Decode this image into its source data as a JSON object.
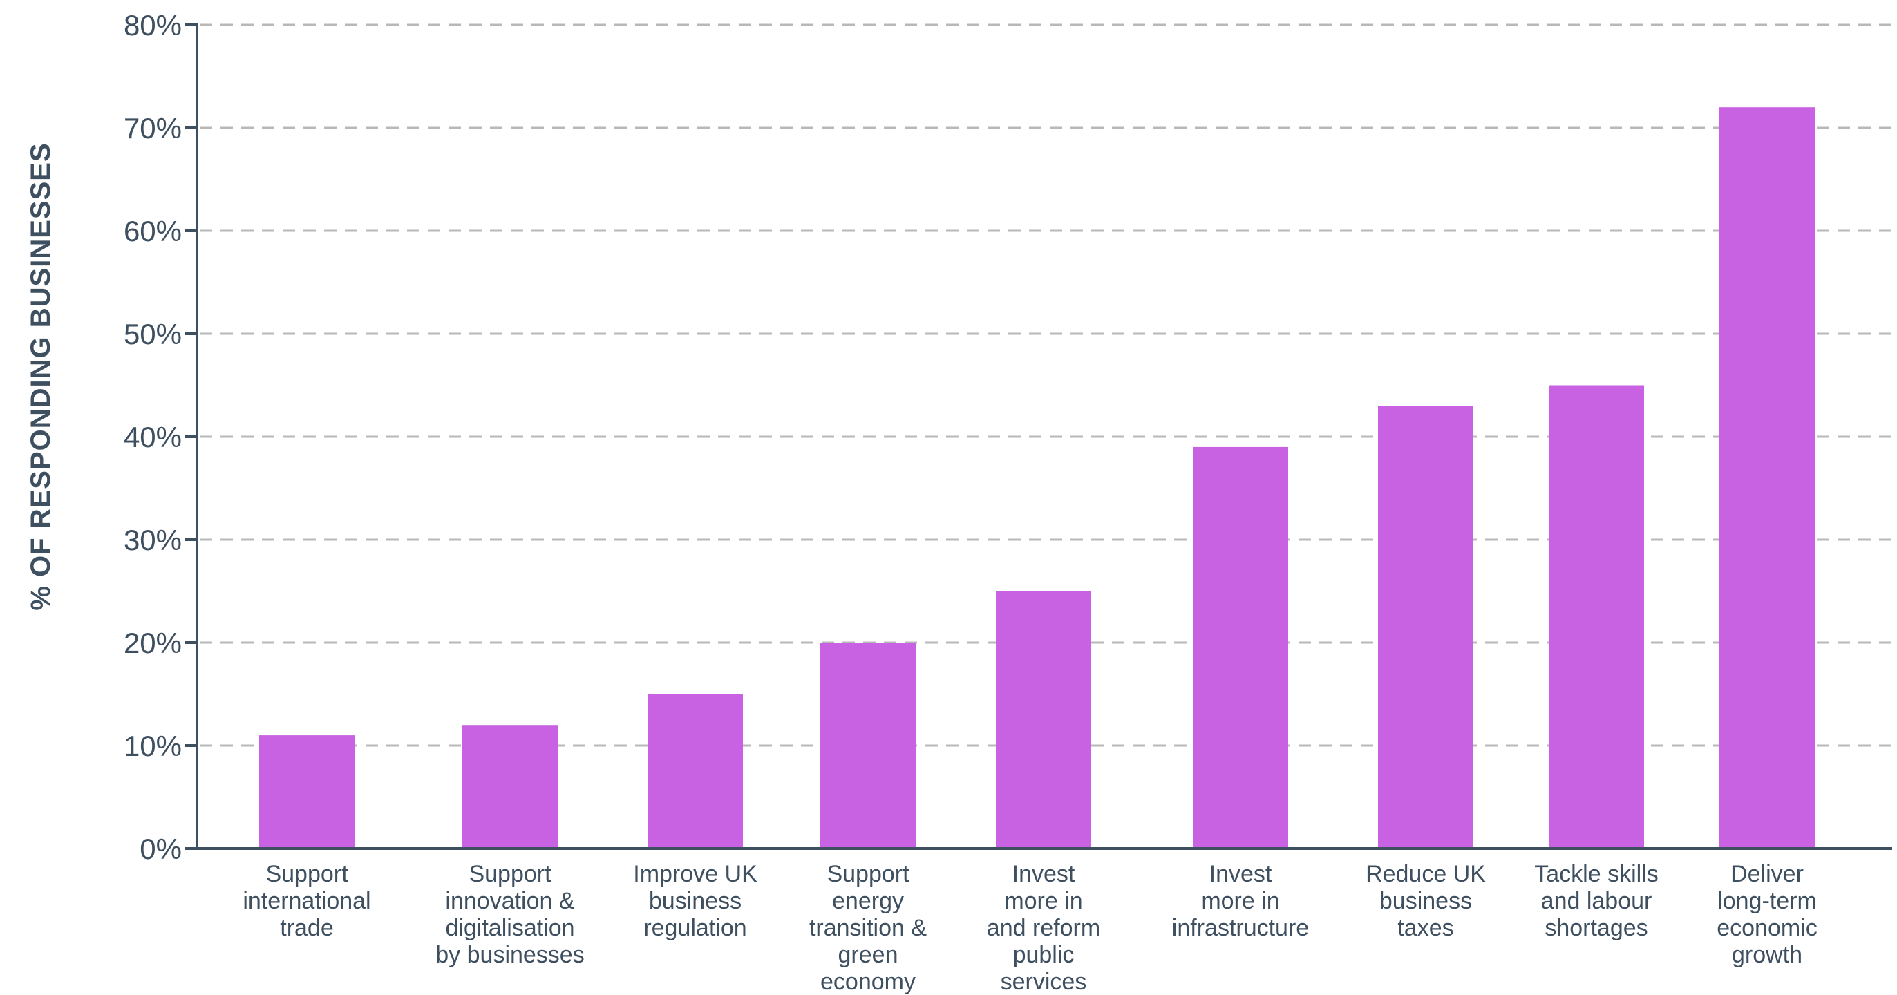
{
  "chart_data": {
    "type": "bar",
    "title": "",
    "xlabel": "",
    "ylabel": "% OF RESPONDING BUSINESSES",
    "ylim": [
      0,
      80
    ],
    "y_ticks": [
      "0%",
      "10%",
      "20%",
      "30%",
      "40%",
      "50%",
      "60%",
      "70%",
      "80%"
    ],
    "grid": true,
    "bar_color": "#c862e2",
    "axis_color": "#3e4f60",
    "categories": [
      "Support international trade",
      "Support innovation & digitalisation by businesses",
      "Improve UK business regulation",
      "Support energy transition & green economy",
      "Invest more in and reform public services",
      "Invest more in infrastructure",
      "Reduce UK business taxes",
      "Tackle skills and labour shortages",
      "Deliver long-term economic growth"
    ],
    "category_lines": [
      [
        "Support",
        "international",
        "trade"
      ],
      [
        "Support",
        "innovation &",
        "digitalisation",
        "by businesses"
      ],
      [
        "Improve UK",
        "business",
        "regulation"
      ],
      [
        "Support",
        "energy",
        "transition &",
        "green",
        "economy"
      ],
      [
        "Invest",
        "more in",
        "and reform",
        "public",
        "services"
      ],
      [
        "Invest",
        "more in",
        "infrastructure"
      ],
      [
        "Reduce UK",
        "business",
        "taxes"
      ],
      [
        "Tackle skills",
        "and labour",
        "shortages"
      ],
      [
        "Deliver",
        "long-term",
        "economic",
        "growth"
      ]
    ],
    "values": [
      11,
      12,
      15,
      20,
      25,
      39,
      43,
      45,
      72
    ]
  }
}
